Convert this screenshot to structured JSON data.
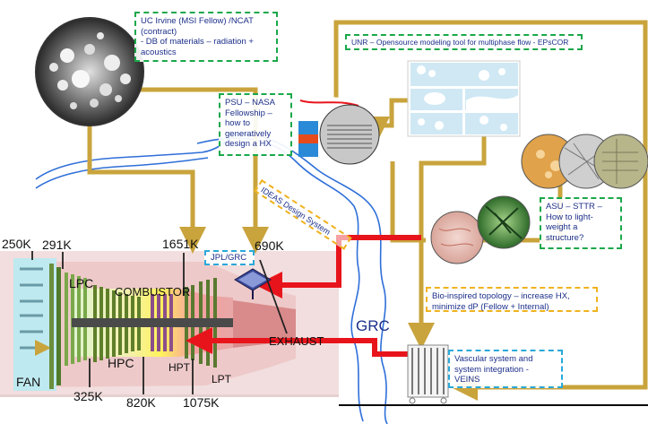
{
  "notes": {
    "uci": "UC Irvine (MSI Fellow) /NCAT (contract)\n- DB of materials – radiation + acoustics",
    "unr": "UNR – Opensource modeling tool for multiphase flow - EPsCOR",
    "psu": "PSU – NASA Fellowship – how to generatively design a HX",
    "asu": "ASU – STTR – How to light-weight a structure?",
    "jpl": "JPL/GRC",
    "bio": "Bio-inspired topology – increase HX, minimize dP (Fellow + Internal)",
    "veins": "Vascular system and system integration - VEINS"
  },
  "ideas_label": "IDEAS Design System",
  "grc_label": "GRC",
  "engine": {
    "temps": {
      "t250": "250K",
      "t291": "291K",
      "t1651": "1651K",
      "t690": "690K",
      "t325": "325K",
      "t820": "820K",
      "t1075": "1075K"
    },
    "parts": {
      "lpc": "LPC",
      "combustor": "COMBUSTOR",
      "exhaust": "EXHAUST",
      "hpc": "HPC",
      "hpt": "HPT",
      "lpt": "LPT",
      "fan": "FAN"
    }
  },
  "colors": {
    "gold": "#c9a43c",
    "red": "#e8141b",
    "blue": "#2f6fd8",
    "green_dash": "#1aa84a",
    "orange_dash": "#f0b21f",
    "blue_dash": "#2aa8d9"
  }
}
